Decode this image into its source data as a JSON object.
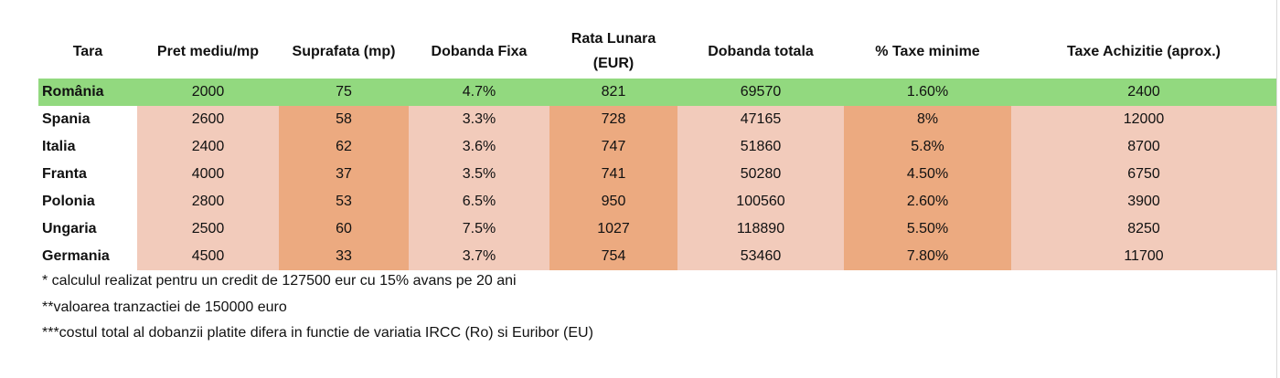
{
  "chart_data": {
    "type": "table",
    "columns": [
      "Tara",
      "Pret mediu/mp",
      "Suprafata (mp)",
      "Dobanda Fixa",
      "Rata Lunara (EUR)",
      "Dobanda totala",
      "% Taxe minime",
      "Taxe Achizitie (aprox.)"
    ],
    "rows": [
      [
        "România",
        "2000",
        "75",
        "4.7%",
        "821",
        "69570",
        "1.60%",
        "2400"
      ],
      [
        "Spania",
        "2600",
        "58",
        "3.3%",
        "728",
        "47165",
        "8%",
        "12000"
      ],
      [
        "Italia",
        "2400",
        "62",
        "3.6%",
        "747",
        "51860",
        "5.8%",
        "8700"
      ],
      [
        "Franta",
        "4000",
        "37",
        "3.5%",
        "741",
        "50280",
        "4.50%",
        "6750"
      ],
      [
        "Polonia",
        "2800",
        "53",
        "6.5%",
        "950",
        "100560",
        "2.60%",
        "3900"
      ],
      [
        "Ungaria",
        "2500",
        "60",
        "7.5%",
        "1027",
        "118890",
        "5.50%",
        "8250"
      ],
      [
        "Germania",
        "4500",
        "33",
        "3.7%",
        "754",
        "53460",
        "7.80%",
        "11700"
      ]
    ],
    "notes": [
      "* calculul realizat pentru un credit de 127500 eur cu 15% avans pe 20 ani",
      "**valoarea tranzactiei de 150000 euro",
      "***costul total al dobanzii platite difera in functie de variatia IRCC (Ro) si Euribor (EU)"
    ]
  },
  "colors": {
    "highlight_row": "#92d97f",
    "cell_light": "#f2cbbb",
    "cell_dark": "#ecaa80",
    "background": "#ffffff"
  }
}
